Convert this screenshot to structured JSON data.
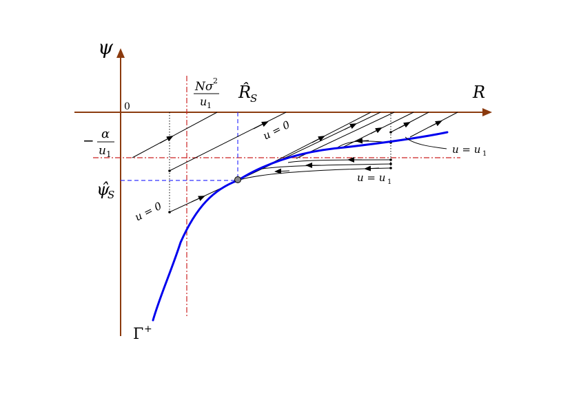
{
  "axes": {
    "y_label": "ψ",
    "x_label": "R",
    "origin_label": "0",
    "axis_color": "#8B3A0E"
  },
  "labels": {
    "minus_alpha": {
      "sign": "−",
      "num": "α",
      "den": "u",
      "sub": "1"
    },
    "psi_hat": {
      "main": "ψ̂",
      "sub": "S"
    },
    "n_sigma": {
      "num": "Nσ",
      "sup": "2",
      "den": "u",
      "sub": "1"
    },
    "r_hat": {
      "main": "R̂",
      "sub": "S"
    },
    "gamma": {
      "main": "Γ",
      "sup": "+"
    },
    "u_zero_upper": "u = 0",
    "u_zero_lower": "u = 0",
    "u_u1_right": {
      "main": "u = u",
      "sub": "1"
    },
    "u_u1_lower": {
      "main": "u = u",
      "sub": "1"
    }
  },
  "colors": {
    "curve": "#0000EE",
    "dashed_blue": "#3333FF",
    "dashdot_red": "#CC2222",
    "trajectory": "#000000",
    "equilibrium_point": "#888888"
  }
}
